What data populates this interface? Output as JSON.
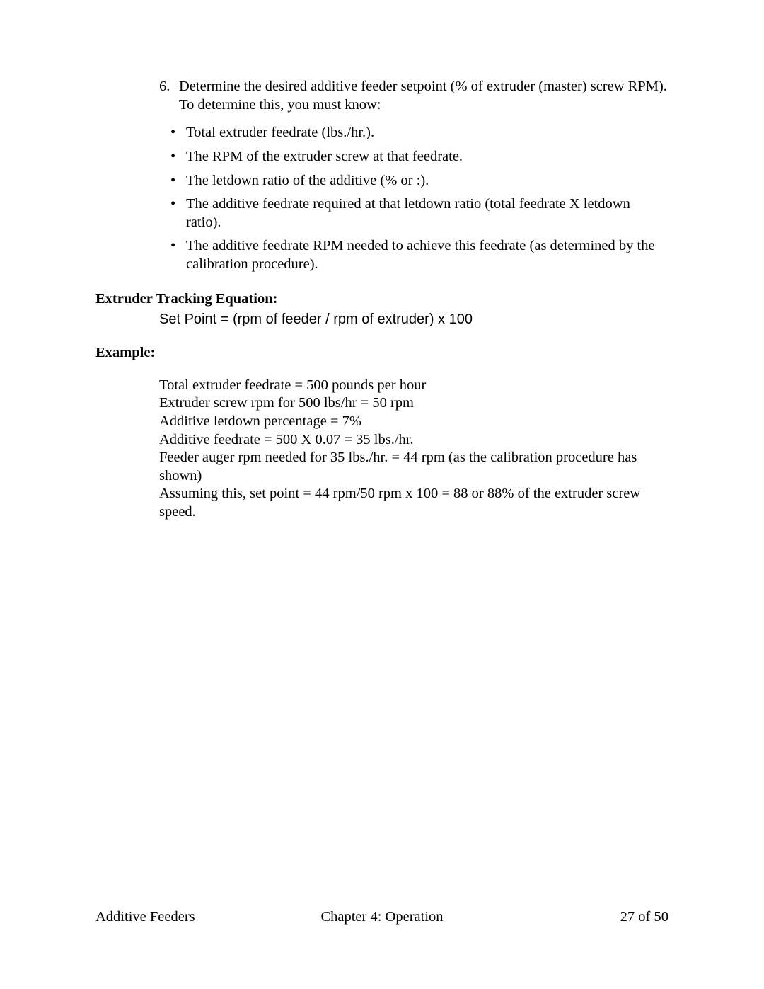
{
  "step": {
    "number": "6.",
    "text": "Determine the desired additive feeder setpoint (% of extruder (master) screw RPM). To determine this, you must know:"
  },
  "bullets": [
    "Total extruder feedrate (lbs./hr.).",
    "The RPM of the extruder screw at that feedrate.",
    "The letdown ratio of the additive (% or :).",
    "The additive feedrate required at that letdown ratio (total feedrate X letdown ratio).",
    "The additive feedrate RPM needed to achieve this feedrate (as determined by the calibration procedure)."
  ],
  "tracking_heading": "Extruder Tracking Equation:",
  "equation": "Set Point = (rpm of feeder / rpm of extruder) x 100",
  "example_heading": "Example:",
  "example_lines": [
    "Total extruder feedrate = 500 pounds per hour",
    "Extruder screw rpm for 500 lbs/hr = 50 rpm",
    "Additive letdown percentage = 7%",
    "Additive feedrate = 500 X 0.07 = 35 lbs./hr.",
    "Feeder auger rpm needed for 35 lbs./hr. = 44 rpm (as the calibration procedure has shown)",
    "Assuming this, set point = 44 rpm/50 rpm x 100 = 88 or 88% of the extruder screw speed."
  ],
  "footer": {
    "left": "Additive Feeders",
    "center": "Chapter 4: Operation",
    "right": "27 of 50"
  },
  "bullet_char": "•"
}
